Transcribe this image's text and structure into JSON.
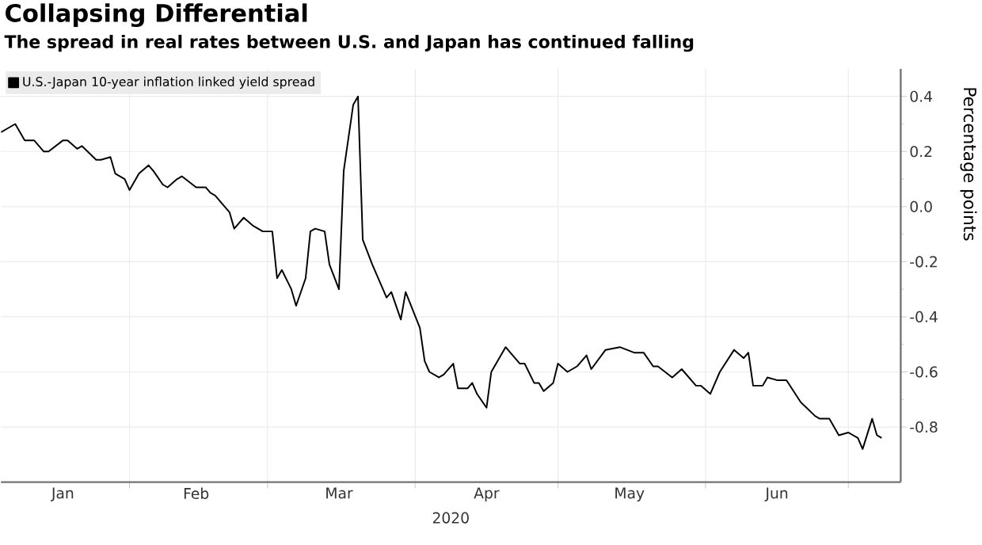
{
  "chart_data": {
    "type": "line",
    "title": "Collapsing Differential",
    "subtitle": "The spread in real rates between U.S. and Japan has continued falling",
    "xlabel": "2020",
    "ylabel": "Percentage points",
    "x": [
      "2020-01-05",
      "2020-01-08",
      "2020-01-10",
      "2020-01-12",
      "2020-01-14",
      "2020-01-15",
      "2020-01-18",
      "2020-01-19",
      "2020-01-21",
      "2020-01-22",
      "2020-01-25",
      "2020-01-26",
      "2020-01-28",
      "2020-01-29",
      "2020-01-31",
      "2020-02-01",
      "2020-02-03",
      "2020-02-05",
      "2020-02-06",
      "2020-02-08",
      "2020-02-09",
      "2020-02-11",
      "2020-02-12",
      "2020-02-15",
      "2020-02-17",
      "2020-02-18",
      "2020-02-19",
      "2020-02-22",
      "2020-02-23",
      "2020-02-25",
      "2020-02-27",
      "2020-02-29",
      "2020-03-02",
      "2020-03-03",
      "2020-03-04",
      "2020-03-06",
      "2020-03-07",
      "2020-03-09",
      "2020-03-10",
      "2020-03-11",
      "2020-03-13",
      "2020-03-14",
      "2020-03-16",
      "2020-03-17",
      "2020-03-19",
      "2020-03-20",
      "2020-03-21",
      "2020-03-23",
      "2020-03-26",
      "2020-03-27",
      "2020-03-29",
      "2020-03-30",
      "2020-04-02",
      "2020-04-03",
      "2020-04-04",
      "2020-04-06",
      "2020-04-07",
      "2020-04-09",
      "2020-04-10",
      "2020-04-12",
      "2020-04-13",
      "2020-04-14",
      "2020-04-16",
      "2020-04-17",
      "2020-04-20",
      "2020-04-23",
      "2020-04-24",
      "2020-04-26",
      "2020-04-27",
      "2020-04-28",
      "2020-04-30",
      "2020-05-01",
      "2020-05-03",
      "2020-05-05",
      "2020-05-07",
      "2020-05-08",
      "2020-05-11",
      "2020-05-14",
      "2020-05-17",
      "2020-05-19",
      "2020-05-21",
      "2020-05-22",
      "2020-05-25",
      "2020-05-27",
      "2020-05-30",
      "2020-05-31",
      "2020-06-02",
      "2020-06-04",
      "2020-06-07",
      "2020-06-09",
      "2020-06-10",
      "2020-06-11",
      "2020-06-13",
      "2020-06-14",
      "2020-06-16",
      "2020-06-18",
      "2020-06-21",
      "2020-06-24",
      "2020-06-25",
      "2020-06-27",
      "2020-06-29",
      "2020-07-01",
      "2020-07-03",
      "2020-07-04",
      "2020-07-06",
      "2020-07-07",
      "2020-07-08"
    ],
    "series": [
      {
        "name": "U.S.-Japan 10-year inflation linked yield spread",
        "color": "#000000",
        "values": [
          0.27,
          0.3,
          0.24,
          0.24,
          0.2,
          0.2,
          0.24,
          0.24,
          0.21,
          0.22,
          0.17,
          0.17,
          0.18,
          0.12,
          0.1,
          0.06,
          0.12,
          0.15,
          0.13,
          0.08,
          0.07,
          0.1,
          0.11,
          0.07,
          0.07,
          0.05,
          0.04,
          -0.02,
          -0.08,
          -0.04,
          -0.07,
          -0.09,
          -0.09,
          -0.26,
          -0.23,
          -0.3,
          -0.36,
          -0.26,
          -0.09,
          -0.08,
          -0.09,
          -0.21,
          -0.3,
          0.13,
          0.37,
          0.4,
          -0.12,
          -0.21,
          -0.33,
          -0.31,
          -0.41,
          -0.31,
          -0.44,
          -0.56,
          -0.6,
          -0.62,
          -0.61,
          -0.57,
          -0.66,
          -0.66,
          -0.64,
          -0.68,
          -0.73,
          -0.6,
          -0.51,
          -0.57,
          -0.57,
          -0.64,
          -0.64,
          -0.67,
          -0.64,
          -0.57,
          -0.6,
          -0.58,
          -0.54,
          -0.59,
          -0.52,
          -0.51,
          -0.53,
          -0.53,
          -0.58,
          -0.58,
          -0.62,
          -0.59,
          -0.65,
          -0.65,
          -0.68,
          -0.6,
          -0.52,
          -0.55,
          -0.53,
          -0.65,
          -0.65,
          -0.62,
          -0.63,
          -0.63,
          -0.71,
          -0.76,
          -0.77,
          -0.77,
          -0.83,
          -0.82,
          -0.84,
          -0.88,
          -0.77,
          -0.83,
          -0.84
        ]
      }
    ],
    "xlim": [
      "2020-01-05",
      "2020-07-12"
    ],
    "xticks": [
      {
        "value": "2020-02-01",
        "label": null
      },
      {
        "value": "2020-03-01",
        "label": null
      },
      {
        "value": "2020-04-01",
        "label": null
      },
      {
        "value": "2020-05-01",
        "label": null
      },
      {
        "value": "2020-06-01",
        "label": null
      },
      {
        "value": "2020-07-01",
        "label": null
      },
      {
        "value": "2020-01-18",
        "label": "Jan"
      },
      {
        "value": "2020-02-15",
        "label": "Feb"
      },
      {
        "value": "2020-03-16",
        "label": "Mar"
      },
      {
        "value": "2020-04-16",
        "label": "Apr"
      },
      {
        "value": "2020-05-16",
        "label": "May"
      },
      {
        "value": "2020-06-16",
        "label": "Jun"
      }
    ],
    "ylim": [
      -1.0,
      0.5
    ],
    "yticks": [
      -0.8,
      -0.6,
      -0.4,
      -0.2,
      {
        "value": 0,
        "label": "0.0"
      },
      0.2,
      0.4
    ],
    "grid": true,
    "legend": "top left",
    "line_style": "solid",
    "marker": "none"
  }
}
